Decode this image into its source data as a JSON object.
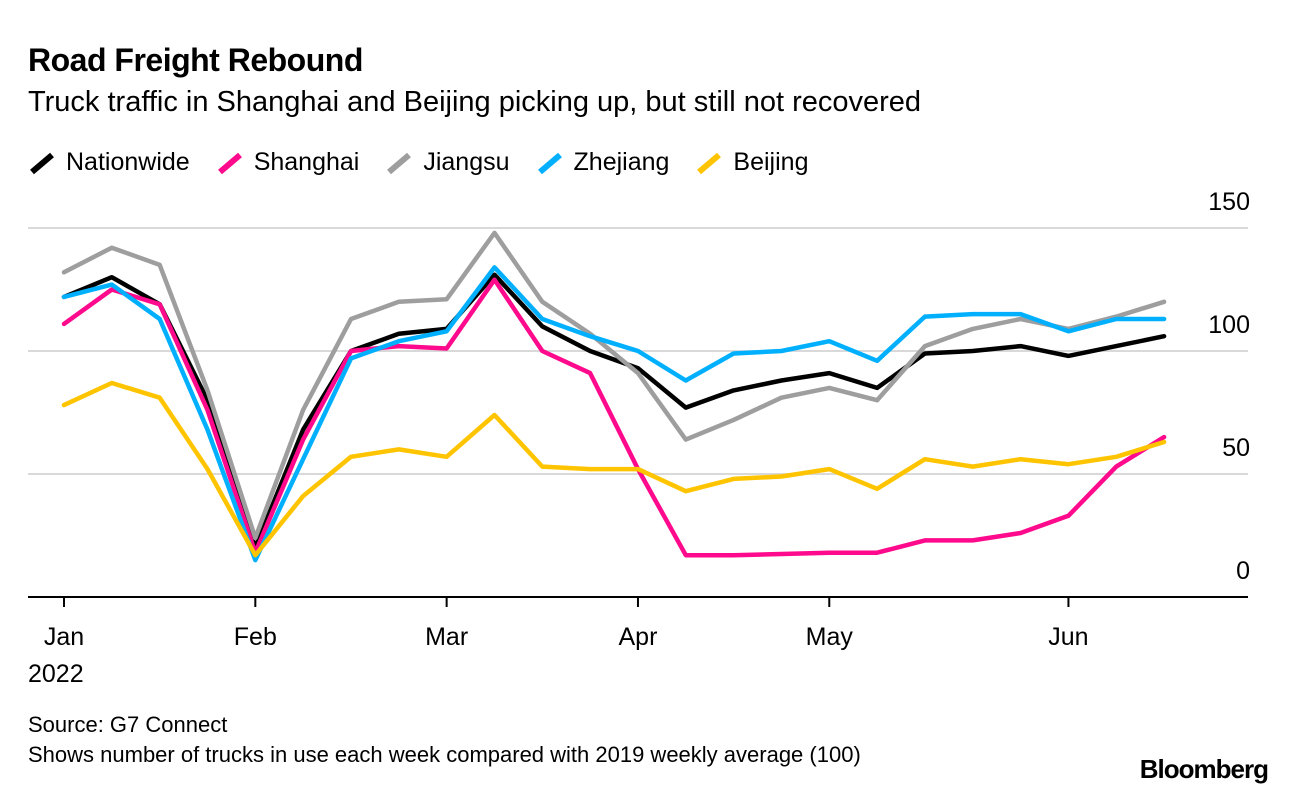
{
  "chart_data": {
    "type": "line",
    "title": "Road Freight Rebound",
    "subtitle": "Truck traffic in Shanghai and Beijing picking up, but still not recovered",
    "x_ticks": [
      {
        "label": "Jan",
        "index": 0
      },
      {
        "label": "Feb",
        "index": 4
      },
      {
        "label": "Mar",
        "index": 8
      },
      {
        "label": "Apr",
        "index": 12
      },
      {
        "label": "May",
        "index": 16
      },
      {
        "label": "Jun",
        "index": 21
      }
    ],
    "x_year_label": "2022",
    "y_ticks": [
      0,
      50,
      100,
      150
    ],
    "ylim": [
      0,
      150
    ],
    "grid": true,
    "legend_position": "top-left",
    "series": [
      {
        "name": "Nationwide",
        "color": "#000000",
        "values": [
          122,
          130,
          119,
          80,
          20,
          68,
          100,
          107,
          109,
          131,
          110,
          100,
          93,
          77,
          84,
          88,
          91,
          85,
          99,
          100,
          102,
          98,
          102,
          106
        ]
      },
      {
        "name": "Shanghai",
        "color": "#ff0a8c",
        "values": [
          111,
          125,
          119,
          76,
          18,
          64,
          100,
          102,
          101,
          129,
          100,
          91,
          52,
          17,
          17,
          17.5,
          18,
          18,
          23,
          23,
          26,
          33,
          53,
          65
        ]
      },
      {
        "name": "Jiangsu",
        "color": "#9e9e9e",
        "values": [
          132,
          142,
          135,
          84,
          24,
          76,
          113,
          120,
          121,
          148,
          120,
          107,
          91,
          64,
          72,
          81,
          85,
          80,
          102,
          109,
          113,
          109,
          114,
          120
        ]
      },
      {
        "name": "Zhejiang",
        "color": "#00b0ff",
        "values": [
          122,
          127,
          113,
          68,
          15,
          56,
          97,
          104,
          108,
          134,
          113,
          106,
          100,
          88,
          99,
          100,
          104,
          96,
          114,
          115,
          115,
          108,
          113,
          113
        ]
      },
      {
        "name": "Beijing",
        "color": "#ffc400",
        "values": [
          78,
          87,
          81,
          52,
          17,
          41,
          57,
          60,
          57,
          74,
          53,
          52,
          52,
          43,
          48,
          49,
          52,
          44,
          56,
          53,
          56,
          54,
          57,
          63
        ]
      }
    ]
  },
  "footer": {
    "source": "Source: G7 Connect",
    "note": "Shows number of trucks in use each week compared with 2019 weekly average (100)",
    "logo": "Bloomberg"
  }
}
